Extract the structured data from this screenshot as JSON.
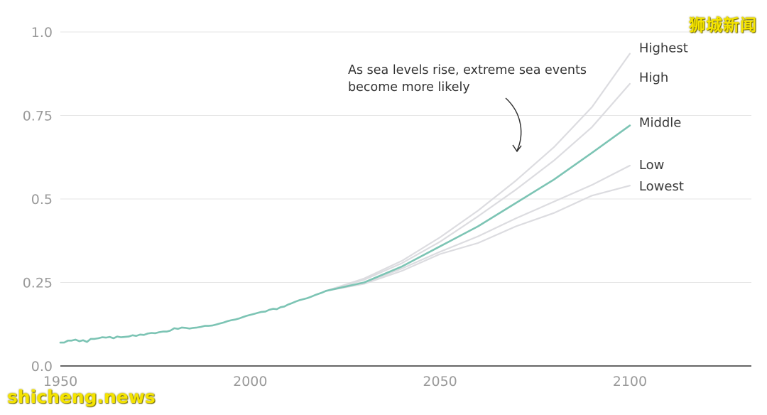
{
  "chart_data": {
    "type": "line",
    "title": "",
    "xlabel": "",
    "ylabel": "",
    "xlim": [
      1950,
      2132
    ],
    "ylim": [
      0,
      1.0
    ],
    "x_ticks": [
      "1950",
      "2000",
      "2050",
      "2100"
    ],
    "y_ticks": [
      "0.0",
      "0.25",
      "0.5",
      "0.75",
      "1.0"
    ],
    "grid": true,
    "annotation": {
      "line1": "As sea levels rise, extreme sea events",
      "line2": "become more likely"
    },
    "observed": {
      "x": [
        1950,
        1951,
        1952,
        1953,
        1954,
        1955,
        1956,
        1957,
        1958,
        1959,
        1960,
        1961,
        1962,
        1963,
        1964,
        1965,
        1966,
        1967,
        1968,
        1969,
        1970,
        1971,
        1972,
        1973,
        1974,
        1975,
        1976,
        1977,
        1978,
        1979,
        1980,
        1981,
        1982,
        1983,
        1984,
        1985,
        1986,
        1987,
        1988,
        1989,
        1990,
        1991,
        1992,
        1993,
        1994,
        1995,
        1996,
        1997,
        1998,
        1999,
        2000,
        2001,
        2002,
        2003,
        2004,
        2005,
        2006,
        2007,
        2008,
        2009,
        2010,
        2011,
        2012,
        2013,
        2014,
        2015,
        2016,
        2017,
        2018,
        2019,
        2020
      ],
      "y": [
        0.07,
        0.07,
        0.076,
        0.076,
        0.079,
        0.074,
        0.077,
        0.072,
        0.081,
        0.081,
        0.083,
        0.086,
        0.085,
        0.087,
        0.083,
        0.088,
        0.086,
        0.087,
        0.088,
        0.092,
        0.09,
        0.094,
        0.093,
        0.097,
        0.099,
        0.098,
        0.101,
        0.103,
        0.103,
        0.106,
        0.113,
        0.111,
        0.115,
        0.114,
        0.112,
        0.114,
        0.115,
        0.117,
        0.12,
        0.12,
        0.121,
        0.124,
        0.127,
        0.13,
        0.134,
        0.137,
        0.139,
        0.142,
        0.146,
        0.15,
        0.153,
        0.156,
        0.159,
        0.162,
        0.163,
        0.168,
        0.171,
        0.17,
        0.176,
        0.178,
        0.184,
        0.188,
        0.193,
        0.197,
        0.2,
        0.203,
        0.207,
        0.212,
        0.216,
        0.22,
        0.225
      ]
    },
    "projections": [
      {
        "name": "Highest",
        "x": [
          2020,
          2030,
          2040,
          2050,
          2060,
          2070,
          2080,
          2090,
          2100
        ],
        "y": [
          0.225,
          0.262,
          0.315,
          0.385,
          0.465,
          0.555,
          0.655,
          0.775,
          0.935
        ]
      },
      {
        "name": "High",
        "x": [
          2020,
          2030,
          2040,
          2050,
          2060,
          2070,
          2080,
          2090,
          2100
        ],
        "y": [
          0.225,
          0.258,
          0.308,
          0.372,
          0.448,
          0.528,
          0.615,
          0.715,
          0.845
        ]
      },
      {
        "name": "Middle",
        "x": [
          2020,
          2030,
          2040,
          2050,
          2060,
          2070,
          2080,
          2090,
          2100
        ],
        "y": [
          0.225,
          0.25,
          0.298,
          0.358,
          0.418,
          0.488,
          0.558,
          0.638,
          0.72
        ]
      },
      {
        "name": "Low",
        "x": [
          2020,
          2030,
          2040,
          2050,
          2060,
          2070,
          2080,
          2090,
          2100
        ],
        "y": [
          0.225,
          0.248,
          0.292,
          0.342,
          0.388,
          0.442,
          0.492,
          0.542,
          0.6
        ]
      },
      {
        "name": "Lowest",
        "x": [
          2020,
          2030,
          2040,
          2050,
          2060,
          2070,
          2080,
          2090,
          2100
        ],
        "y": [
          0.225,
          0.246,
          0.285,
          0.335,
          0.368,
          0.418,
          0.458,
          0.51,
          0.54
        ]
      }
    ],
    "colors": {
      "observed": "#7cc4b4",
      "projection": "#dcdce0",
      "middle": "#7cc4b4",
      "grid": "#e6e6e6",
      "axis": "#333333",
      "tick_label": "#9a9a9a",
      "series_label": "#3a3a3a"
    }
  },
  "watermarks": {
    "top_right": "狮城新闻",
    "bottom_left": "shicheng.news"
  }
}
